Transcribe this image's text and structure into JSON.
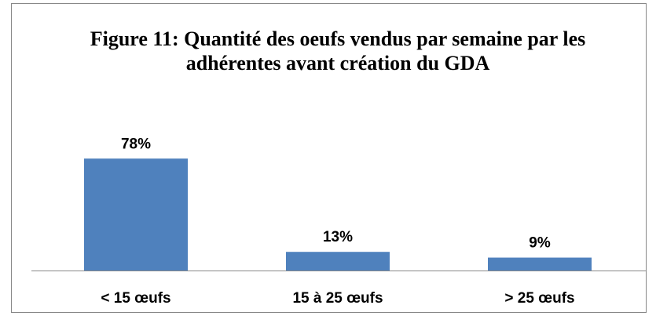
{
  "chart_data": {
    "type": "bar",
    "title": "Figure 11: Quantité des oeufs vendus par semaine par les adhérentes avant création du GDA",
    "categories": [
      "< 15 œufs",
      "15 à 25 œufs",
      "> 25 œufs"
    ],
    "values": [
      78,
      13,
      9
    ],
    "value_labels": [
      "78%",
      "13%",
      "9%"
    ],
    "color": "#4f81bd"
  }
}
